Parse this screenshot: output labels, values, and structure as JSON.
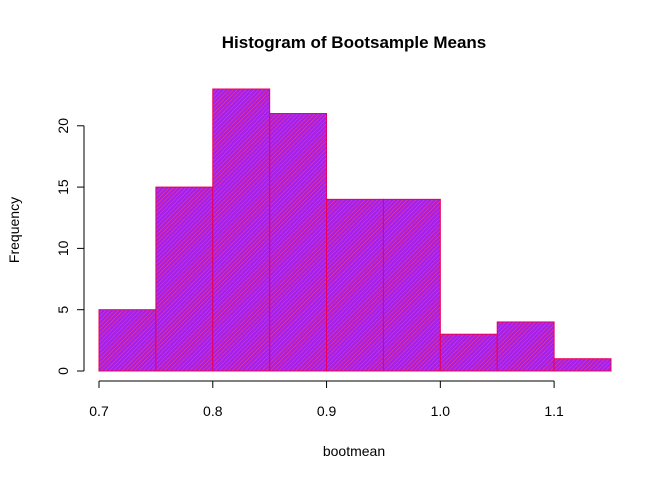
{
  "chart_data": {
    "type": "bar",
    "subtype": "histogram",
    "title": "Histogram of Bootsample Means",
    "xlabel": "bootmean",
    "ylabel": "Frequency",
    "bins": [
      {
        "start": 0.7,
        "end": 0.75,
        "count": 5
      },
      {
        "start": 0.75,
        "end": 0.8,
        "count": 15
      },
      {
        "start": 0.8,
        "end": 0.85,
        "count": 23
      },
      {
        "start": 0.85,
        "end": 0.9,
        "count": 21
      },
      {
        "start": 0.9,
        "end": 0.95,
        "count": 14
      },
      {
        "start": 0.95,
        "end": 1.0,
        "count": 14
      },
      {
        "start": 1.0,
        "end": 1.05,
        "count": 3
      },
      {
        "start": 1.05,
        "end": 1.1,
        "count": 4
      },
      {
        "start": 1.1,
        "end": 1.15,
        "count": 1
      }
    ],
    "xlim": [
      0.7,
      1.15
    ],
    "ylim": [
      0,
      23
    ],
    "xticks": [
      {
        "value": 0.7,
        "label": "0.7"
      },
      {
        "value": 0.8,
        "label": "0.8"
      },
      {
        "value": 0.9,
        "label": "0.9"
      },
      {
        "value": 1.0,
        "label": "1.0"
      },
      {
        "value": 1.1,
        "label": "1.1"
      }
    ],
    "yticks": [
      {
        "value": 0,
        "label": "0"
      },
      {
        "value": 5,
        "label": "5"
      },
      {
        "value": 10,
        "label": "10"
      },
      {
        "value": 15,
        "label": "15"
      },
      {
        "value": 20,
        "label": "20"
      }
    ],
    "grid": false,
    "legend": "none",
    "colors": {
      "bar_fill": "#a020f0",
      "bar_border": "#e8005a",
      "hatch_line": "#ff3a7a"
    }
  }
}
